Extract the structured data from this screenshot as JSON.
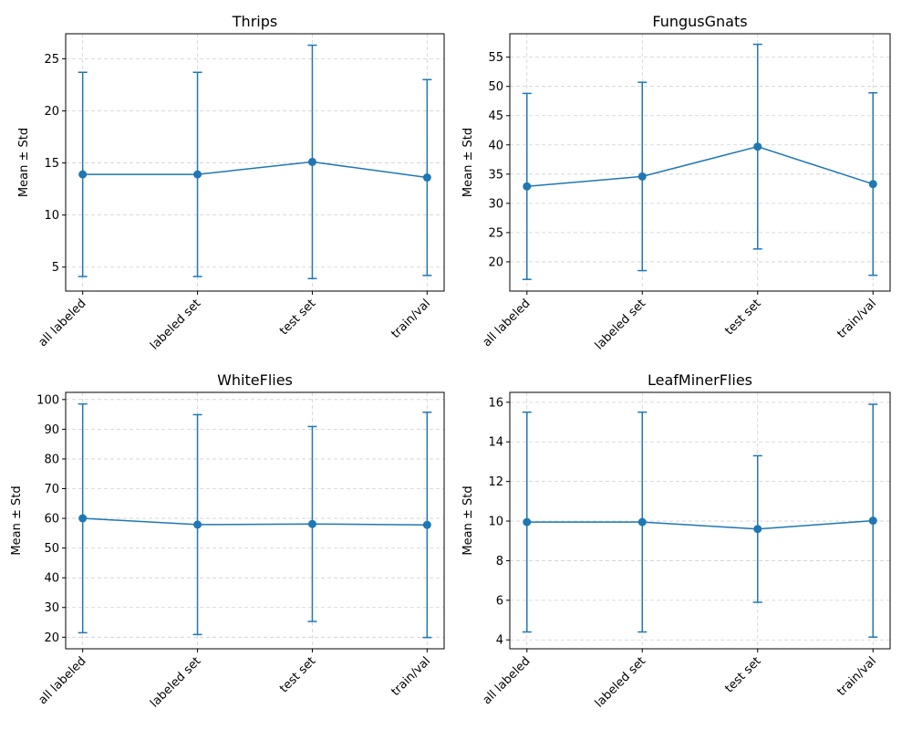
{
  "colors": {
    "series": "#1f77b4"
  },
  "chart_data": [
    {
      "type": "line",
      "title": "Thrips",
      "ylabel": "Mean ± Std",
      "categories": [
        "all labeled",
        "labeled set",
        "test set",
        "train/val"
      ],
      "values": [
        13.9,
        13.9,
        15.1,
        13.6
      ],
      "std": [
        9.8,
        9.8,
        11.2,
        9.4
      ],
      "yticks": [
        5,
        10,
        15,
        20,
        25
      ],
      "ylim": [
        2.7,
        27.4
      ],
      "grid": true
    },
    {
      "type": "line",
      "title": "FungusGnats",
      "ylabel": "Mean ± Std",
      "categories": [
        "all labeled",
        "labeled set",
        "test set",
        "train/val"
      ],
      "values": [
        32.9,
        34.6,
        39.7,
        33.3
      ],
      "std": [
        15.9,
        16.1,
        17.5,
        15.6
      ],
      "yticks": [
        20,
        25,
        30,
        35,
        40,
        45,
        50,
        55
      ],
      "ylim": [
        15.0,
        59.0
      ],
      "grid": true
    },
    {
      "type": "line",
      "title": "WhiteFlies",
      "ylabel": "Mean ± Std",
      "categories": [
        "all labeled",
        "labeled set",
        "test set",
        "train/val"
      ],
      "values": [
        60.0,
        57.9,
        58.1,
        57.8
      ],
      "std": [
        38.5,
        37.0,
        32.8,
        37.9
      ],
      "yticks": [
        20,
        30,
        40,
        50,
        60,
        70,
        80,
        90,
        100
      ],
      "ylim": [
        16.1,
        102.4
      ],
      "grid": true
    },
    {
      "type": "line",
      "title": "LeafMinerFlies",
      "ylabel": "Mean ± Std",
      "categories": [
        "all labeled",
        "labeled set",
        "test set",
        "train/val"
      ],
      "values": [
        9.95,
        9.95,
        9.6,
        10.02
      ],
      "std": [
        5.55,
        5.55,
        3.7,
        5.88
      ],
      "yticks": [
        4,
        6,
        8,
        10,
        12,
        14,
        16
      ],
      "ylim": [
        3.55,
        16.5
      ],
      "grid": true
    }
  ]
}
